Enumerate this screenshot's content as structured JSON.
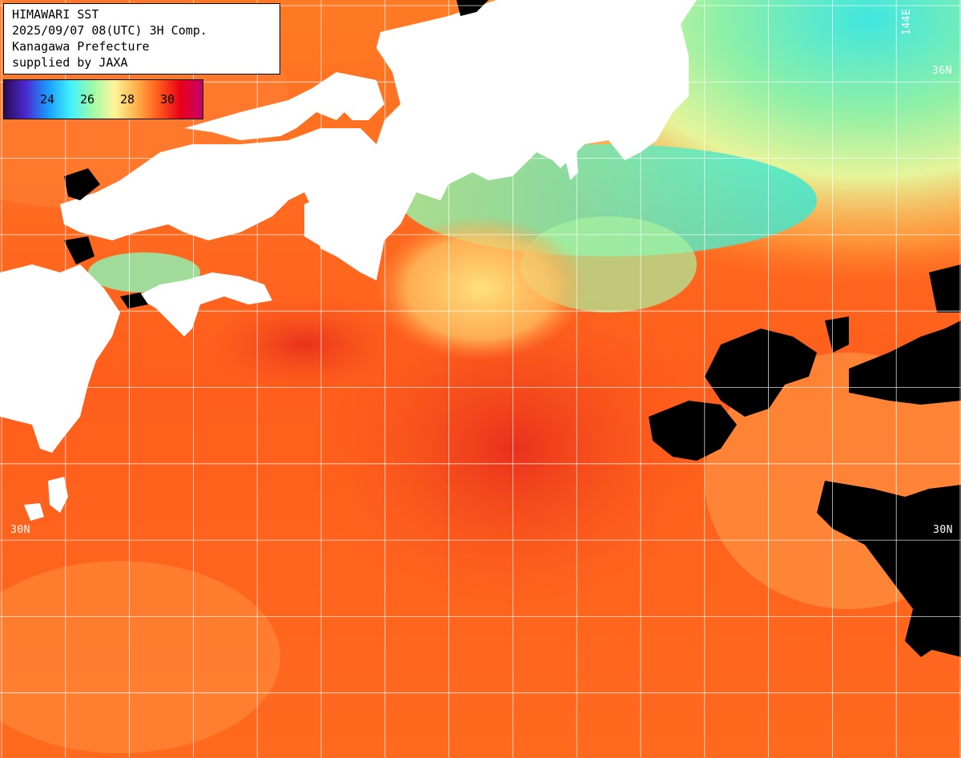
{
  "header": {
    "lines": [
      "HIMAWARI SST",
      "2025/09/07 08(UTC) 3H Comp.",
      "Kanagawa Prefecture",
      "supplied by JAXA"
    ]
  },
  "legend": {
    "ticks": [
      "24",
      "26",
      "28",
      "30"
    ],
    "stops": [
      "#2b0a55",
      "#4a2ad0",
      "#1a9cff",
      "#40f0ff",
      "#9dfaa8",
      "#fff59a",
      "#ffb14a",
      "#ff5a1a",
      "#e8001a",
      "#c4006a"
    ]
  },
  "grid_labels": {
    "lat_top_right": "36N",
    "lat_mid_left": "30N",
    "lat_mid_right": "30N",
    "lon_top": "144E"
  },
  "colors": {
    "land": "#ffffff",
    "cloud": "#000000",
    "sea_warm": "#ff6a1a",
    "sea_hot": "#f0401c",
    "sea_cool": "#9cf0a0",
    "sea_cold": "#35e6d0",
    "grid": "#ffffff"
  }
}
